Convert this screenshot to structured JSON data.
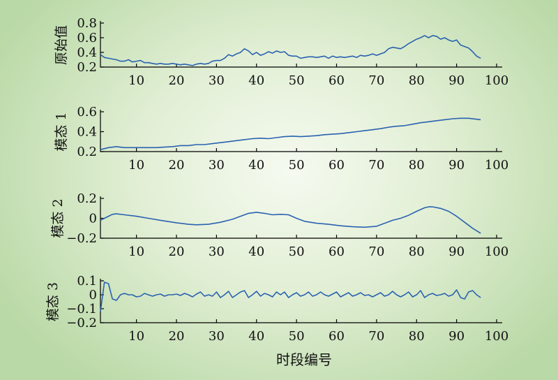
{
  "chart_data": [
    {
      "type": "line",
      "ylabel": "原始值",
      "xlim": [
        1,
        100
      ],
      "ylim": [
        0.2,
        0.8
      ],
      "yticks": [
        "0.2",
        "0.4",
        "0.6",
        "0.8"
      ],
      "xticks": [
        "10",
        "20",
        "30",
        "40",
        "50",
        "60",
        "70",
        "80",
        "90",
        "100"
      ],
      "color": "#2a62b0",
      "series": [
        {
          "x": [
            1,
            2,
            3,
            4,
            5,
            6,
            7,
            8,
            9,
            10,
            11,
            12,
            13,
            14,
            15,
            16,
            17,
            18,
            19,
            20,
            21,
            22,
            23,
            24,
            25,
            26,
            27,
            28,
            29,
            30,
            31,
            32,
            33,
            34,
            35,
            36,
            37,
            38,
            39,
            40,
            41,
            42,
            43,
            44,
            45,
            46,
            47,
            48,
            49,
            50,
            51,
            52,
            53,
            54,
            55,
            56,
            57,
            58,
            59,
            60,
            61,
            62,
            63,
            64,
            65,
            66,
            67,
            68,
            69,
            70,
            71,
            72,
            73,
            74,
            75,
            76,
            77,
            78,
            79,
            80,
            81,
            82,
            83,
            84,
            85,
            86,
            87,
            88,
            89,
            90,
            91,
            92,
            93,
            94,
            95,
            96
          ],
          "values": [
            0.37,
            0.33,
            0.32,
            0.31,
            0.3,
            0.28,
            0.28,
            0.3,
            0.27,
            0.28,
            0.29,
            0.26,
            0.26,
            0.25,
            0.24,
            0.25,
            0.24,
            0.24,
            0.25,
            0.24,
            0.23,
            0.24,
            0.23,
            0.22,
            0.24,
            0.25,
            0.24,
            0.25,
            0.28,
            0.29,
            0.29,
            0.32,
            0.37,
            0.35,
            0.38,
            0.4,
            0.45,
            0.42,
            0.37,
            0.4,
            0.36,
            0.38,
            0.41,
            0.39,
            0.42,
            0.4,
            0.41,
            0.36,
            0.35,
            0.35,
            0.32,
            0.33,
            0.34,
            0.34,
            0.33,
            0.34,
            0.35,
            0.32,
            0.35,
            0.33,
            0.34,
            0.33,
            0.34,
            0.35,
            0.33,
            0.36,
            0.35,
            0.36,
            0.38,
            0.36,
            0.38,
            0.4,
            0.45,
            0.47,
            0.46,
            0.45,
            0.48,
            0.52,
            0.55,
            0.58,
            0.6,
            0.63,
            0.6,
            0.63,
            0.62,
            0.58,
            0.6,
            0.57,
            0.55,
            0.57,
            0.5,
            0.48,
            0.46,
            0.41,
            0.35,
            0.32
          ]
        }
      ]
    },
    {
      "type": "line",
      "ylabel": "模态 1",
      "xlim": [
        1,
        100
      ],
      "ylim": [
        0.2,
        0.6
      ],
      "yticks": [
        "0.2",
        "0.4",
        "0.6"
      ],
      "xticks": [
        "10",
        "20",
        "30",
        "40",
        "50",
        "60",
        "70",
        "80",
        "90",
        "100"
      ],
      "color": "#2a62b0",
      "series": [
        {
          "x": [
            1,
            3,
            5,
            7,
            9,
            11,
            13,
            15,
            17,
            19,
            21,
            23,
            25,
            27,
            29,
            31,
            33,
            35,
            37,
            39,
            41,
            43,
            45,
            47,
            49,
            51,
            53,
            55,
            57,
            59,
            61,
            63,
            65,
            67,
            69,
            71,
            73,
            75,
            77,
            79,
            81,
            83,
            85,
            87,
            89,
            91,
            93,
            95,
            96
          ],
          "values": [
            0.22,
            0.24,
            0.25,
            0.24,
            0.24,
            0.24,
            0.24,
            0.24,
            0.245,
            0.25,
            0.26,
            0.26,
            0.27,
            0.27,
            0.28,
            0.29,
            0.3,
            0.31,
            0.32,
            0.33,
            0.335,
            0.33,
            0.34,
            0.35,
            0.355,
            0.35,
            0.355,
            0.36,
            0.37,
            0.375,
            0.38,
            0.39,
            0.4,
            0.41,
            0.42,
            0.43,
            0.445,
            0.455,
            0.46,
            0.475,
            0.49,
            0.5,
            0.51,
            0.52,
            0.53,
            0.535,
            0.535,
            0.525,
            0.52
          ]
        }
      ]
    },
    {
      "type": "line",
      "ylabel": "模态 2",
      "xlim": [
        1,
        100
      ],
      "ylim": [
        -0.2,
        0.2
      ],
      "yticks": [
        "−0.2",
        "0",
        "0.2"
      ],
      "xticks": [
        "10",
        "20",
        "30",
        "40",
        "50",
        "60",
        "70",
        "80",
        "90",
        "100"
      ],
      "color": "#2a62b0",
      "series": [
        {
          "x": [
            1,
            2,
            3,
            4,
            5,
            7,
            10,
            13,
            16,
            20,
            23,
            25,
            28,
            31,
            34,
            36,
            38,
            40,
            42,
            44,
            46,
            48,
            50,
            52,
            55,
            58,
            61,
            64,
            67,
            70,
            72,
            74,
            76,
            78,
            80,
            82,
            83,
            84,
            86,
            88,
            90,
            92,
            94,
            96
          ],
          "values": [
            -0.02,
            0.0,
            0.02,
            0.04,
            0.045,
            0.035,
            0.02,
            0.0,
            -0.02,
            -0.045,
            -0.06,
            -0.065,
            -0.06,
            -0.04,
            -0.01,
            0.02,
            0.05,
            0.06,
            0.05,
            0.035,
            0.04,
            0.035,
            0.0,
            -0.03,
            -0.05,
            -0.06,
            -0.075,
            -0.085,
            -0.09,
            -0.08,
            -0.05,
            -0.02,
            0.0,
            0.03,
            0.07,
            0.105,
            0.115,
            0.115,
            0.1,
            0.07,
            0.02,
            -0.04,
            -0.1,
            -0.15
          ]
        }
      ]
    },
    {
      "type": "line",
      "ylabel": "模态 3",
      "xlim": [
        1,
        100
      ],
      "ylim": [
        -0.2,
        0.1
      ],
      "yticks": [
        "−0.2",
        "−0.1",
        "0",
        "0.1"
      ],
      "xticks": [
        "10",
        "20",
        "30",
        "40",
        "50",
        "60",
        "70",
        "80",
        "90",
        "100"
      ],
      "xlabel": "时段编号",
      "color": "#2a62b0",
      "series": [
        {
          "x": [
            1,
            2,
            3,
            4,
            5,
            6,
            7,
            8,
            9,
            10,
            11,
            12,
            13,
            14,
            15,
            16,
            17,
            18,
            19,
            20,
            21,
            22,
            23,
            24,
            25,
            26,
            27,
            28,
            29,
            30,
            31,
            32,
            33,
            34,
            35,
            36,
            37,
            38,
            39,
            40,
            41,
            42,
            43,
            44,
            45,
            46,
            47,
            48,
            49,
            50,
            51,
            52,
            53,
            54,
            55,
            56,
            57,
            58,
            59,
            60,
            61,
            62,
            63,
            64,
            65,
            66,
            67,
            68,
            69,
            70,
            71,
            72,
            73,
            74,
            75,
            76,
            77,
            78,
            79,
            80,
            81,
            82,
            83,
            84,
            85,
            86,
            87,
            88,
            89,
            90,
            91,
            92,
            93,
            94,
            95,
            96
          ],
          "values": [
            -0.12,
            0.09,
            0.08,
            -0.03,
            -0.04,
            0.0,
            0.01,
            0.0,
            0.0,
            -0.015,
            -0.01,
            0.01,
            0.0,
            -0.01,
            0.0,
            0.005,
            -0.01,
            0.0,
            0.0,
            0.005,
            -0.005,
            0.01,
            0.0,
            -0.015,
            0.005,
            0.02,
            -0.01,
            0.0,
            -0.01,
            0.02,
            -0.02,
            0.0,
            0.025,
            -0.02,
            0.0,
            0.02,
            0.03,
            -0.02,
            0.0,
            0.025,
            -0.01,
            0.01,
            0.0,
            -0.015,
            0.02,
            0.0,
            0.02,
            -0.02,
            0.0,
            0.015,
            -0.01,
            0.0,
            0.02,
            -0.01,
            0.0,
            0.02,
            0.0,
            -0.01,
            0.005,
            0.02,
            -0.015,
            0.0,
            0.015,
            -0.01,
            0.0,
            0.015,
            -0.005,
            0.0,
            -0.015,
            0.0,
            0.015,
            -0.01,
            0.0,
            0.025,
            0.0,
            -0.015,
            0.0,
            0.02,
            -0.015,
            0.0,
            0.03,
            -0.02,
            0.0,
            0.01,
            -0.005,
            0.0,
            0.01,
            -0.01,
            0.0,
            0.035,
            -0.02,
            -0.03,
            0.02,
            0.03,
            0.0,
            -0.02
          ]
        }
      ]
    }
  ]
}
